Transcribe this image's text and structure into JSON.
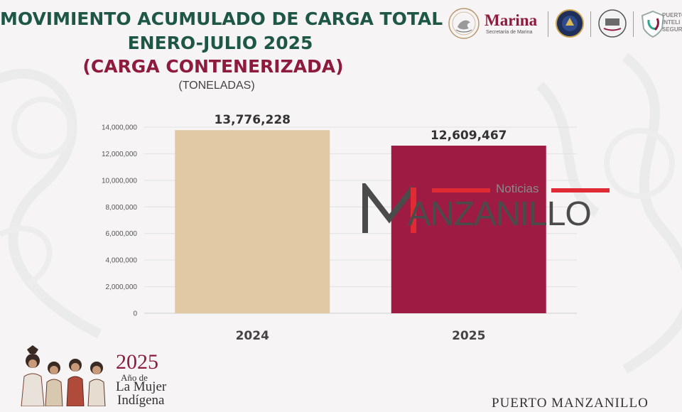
{
  "header": {
    "title_line1": "MOVIMIENTO ACUMULADO DE CARGA TOTAL",
    "title_line2": "ENERO-JULIO 2025",
    "subtitle": "(CARGA CONTENERIZADA)",
    "unit": "(TONELADAS)"
  },
  "logos": {
    "marina_name": "Marina",
    "marina_subtitle": "Secretaría de Marina",
    "partner_text_line1": "PUERTO",
    "partner_text_line2": "INTELI",
    "partner_text_line3": "SEGUR",
    "seal_icon": "mexico-eagle-seal-icon",
    "emblem_icons": [
      "navy-shield-icon",
      "port-authority-emblem-icon",
      "puerto-seguro-shield-icon"
    ]
  },
  "colors": {
    "title_green": "#1f5746",
    "accent_maroon": "#8e1b3d",
    "bar_2024": "#e0c9a3",
    "bar_2025": "#9e1c43"
  },
  "chart_data": {
    "type": "bar",
    "categories": [
      "2024",
      "2025"
    ],
    "values": [
      13776228,
      12609467
    ],
    "value_labels": [
      "13,776,228",
      "12,609,467"
    ],
    "ylim": [
      0,
      14000000
    ],
    "yticks": [
      0,
      2000000,
      4000000,
      6000000,
      8000000,
      10000000,
      12000000,
      14000000
    ],
    "ytick_labels": [
      "0",
      "2,000,000",
      "4,000,000",
      "6,000,000",
      "8,000,000",
      "10,000,000",
      "12,000,000",
      "14,000,000"
    ],
    "grid": true,
    "legend": "none"
  },
  "watermark": {
    "noticias": "Noticias",
    "word": "ANZANILLO"
  },
  "footer": {
    "year": "2025",
    "line2": "Año de",
    "line3": "La Mujer",
    "line4": "Indígena",
    "port_name": "PUERTO MANZANILLO",
    "illustration_icon": "indigenous-women-illustration-icon"
  }
}
